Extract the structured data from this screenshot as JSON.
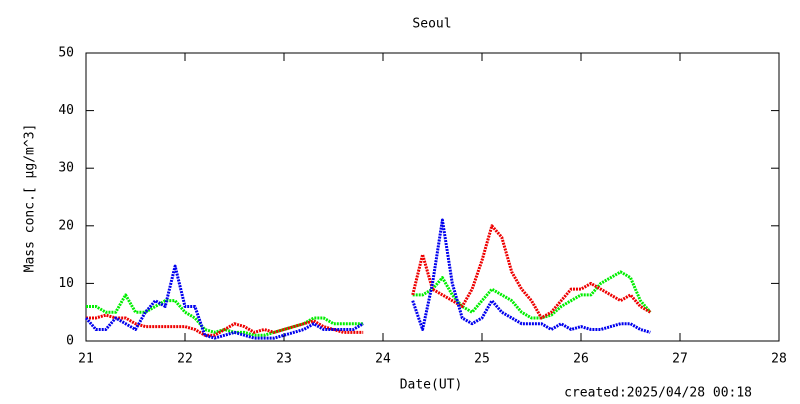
{
  "chart_data": {
    "type": "line",
    "title": "Seoul",
    "x_label": "Date(UT)",
    "y_label": "Mass conc.[ μg/m^3]",
    "annotation": "created:2025/04/28 00:18",
    "x": [
      21.0,
      21.1,
      21.2,
      21.3,
      21.4,
      21.5,
      21.6,
      21.7,
      21.8,
      21.9,
      22.0,
      22.1,
      22.2,
      22.3,
      22.4,
      22.5,
      22.6,
      22.7,
      22.8,
      22.9,
      23.0,
      23.1,
      23.2,
      23.3,
      23.4,
      23.5,
      23.6,
      23.7,
      23.8,
      24.0,
      24.3,
      24.4,
      24.5,
      24.6,
      24.7,
      24.8,
      24.9,
      25.0,
      25.1,
      25.2,
      25.3,
      25.4,
      25.5,
      25.6,
      25.7,
      25.8,
      25.9,
      26.0,
      26.1,
      26.2,
      26.3,
      26.4,
      26.5,
      26.6,
      26.7
    ],
    "series": [
      {
        "color": "#00ee00",
        "values": [
          6,
          6,
          5,
          5,
          8,
          5,
          5,
          6,
          7,
          7,
          5,
          4,
          2,
          1.5,
          2,
          1.5,
          1.5,
          1,
          1,
          1.5,
          2,
          2.5,
          3,
          4,
          4,
          3,
          3,
          3,
          3,
          null,
          8,
          8,
          9,
          11,
          8,
          6,
          5,
          7,
          9,
          8,
          7,
          5,
          4,
          4,
          4.5,
          6,
          7,
          8,
          8,
          10,
          11,
          12,
          11,
          7,
          5
        ]
      },
      {
        "color": "#ee0000",
        "values": [
          4,
          4,
          4.5,
          4,
          4,
          3,
          2.5,
          2.5,
          2.5,
          2.5,
          2.5,
          2,
          1,
          1,
          2,
          3,
          2.5,
          1.5,
          2,
          1.5,
          2,
          2.5,
          3,
          3.5,
          2.5,
          2,
          1.5,
          1.5,
          1.5,
          null,
          8,
          15,
          9,
          8,
          7,
          6,
          9,
          14,
          20,
          18,
          12,
          9,
          7,
          4,
          5,
          7,
          9,
          9,
          10,
          9,
          8,
          7,
          8,
          6,
          5
        ]
      },
      {
        "color": "#0000ee",
        "values": [
          4,
          2,
          2,
          4,
          3,
          2,
          5,
          7,
          6,
          13,
          6,
          6,
          1,
          0.5,
          1,
          1.5,
          1,
          0.5,
          0.5,
          0.5,
          1,
          1.5,
          2,
          3,
          2,
          2,
          2,
          2,
          3,
          null,
          7,
          2,
          10,
          21,
          10,
          4,
          3,
          4,
          7,
          5,
          4,
          3,
          3,
          3,
          2,
          3,
          2,
          2.5,
          2,
          2,
          2.5,
          3,
          3,
          2,
          1.5
        ]
      }
    ],
    "xlim": [
      21,
      28
    ],
    "xticks": [
      21,
      22,
      23,
      24,
      25,
      26,
      27,
      28
    ],
    "ylim": [
      0,
      50
    ],
    "yticks": [
      0,
      10,
      20,
      30,
      40,
      50
    ]
  }
}
